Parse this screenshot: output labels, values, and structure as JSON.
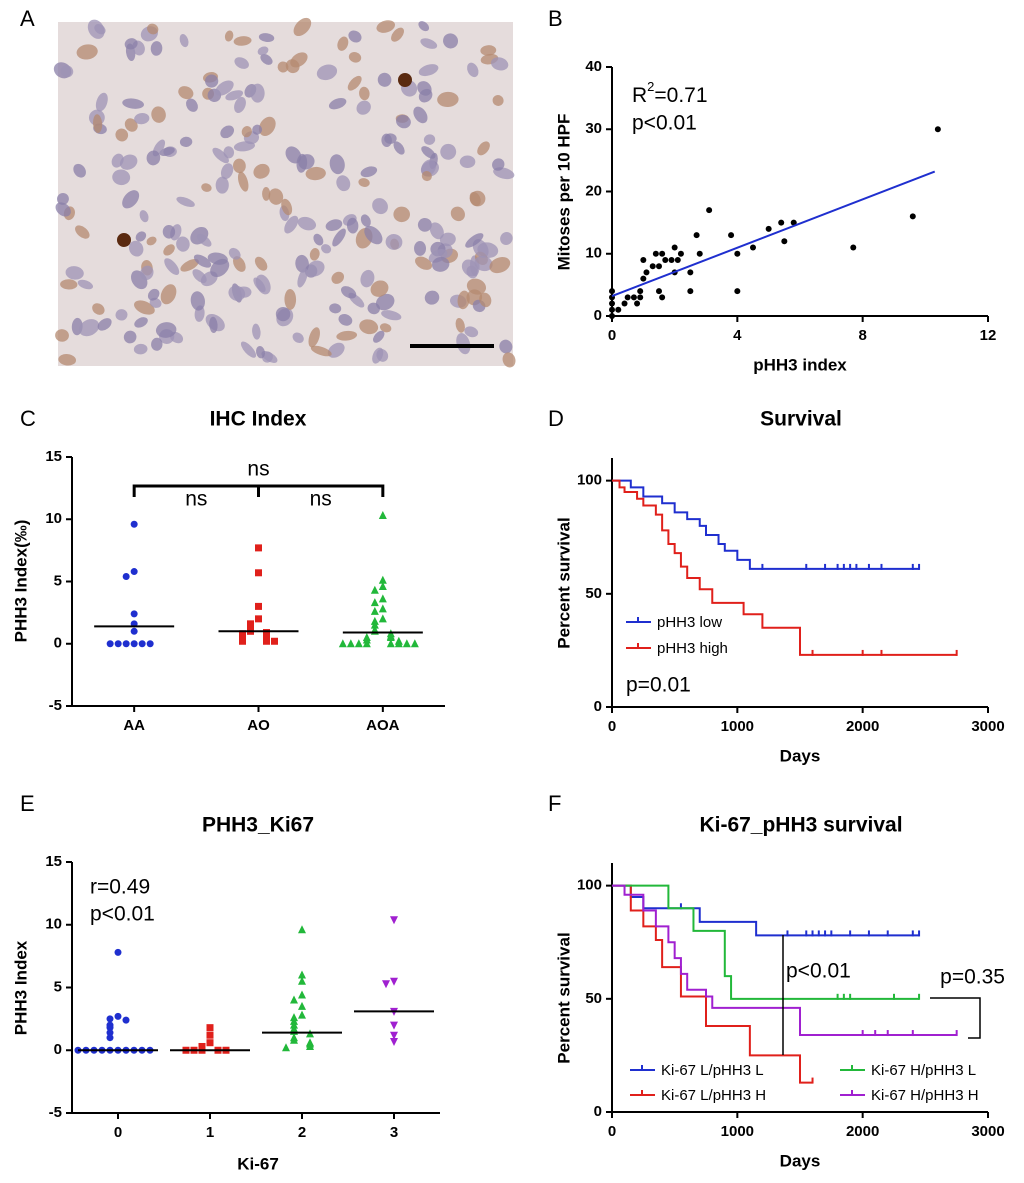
{
  "chart_data": [
    {
      "panel": "A",
      "type": "image"
    },
    {
      "panel": "B",
      "type": "scatter",
      "x": [
        0,
        0,
        0,
        0,
        0,
        0.2,
        0.4,
        0.5,
        0.7,
        0.8,
        0.9,
        0.9,
        1,
        1,
        1.1,
        1.3,
        1.4,
        1.5,
        1.5,
        1.6,
        1.6,
        1.7,
        1.9,
        2,
        2,
        2.2,
        2.1,
        2.5,
        2.5,
        2.7,
        3.1,
        2.8,
        3.8,
        4,
        4,
        4.5,
        5,
        5.4,
        5.5,
        5.8,
        7.7,
        9.6,
        10.4
      ],
      "y": [
        0,
        1,
        2,
        3,
        4,
        1,
        2,
        3,
        3,
        2,
        3,
        4,
        6,
        9,
        7,
        8,
        10,
        8,
        4,
        3,
        10,
        9,
        9,
        7,
        11,
        10,
        9,
        4,
        7,
        13,
        17,
        10,
        13,
        10,
        4,
        11,
        14,
        15,
        12,
        15,
        11,
        16,
        30
      ],
      "color": "#000000",
      "fit_line": {
        "x": [
          0,
          10.3
        ],
        "y": [
          3.2,
          23.2
        ],
        "color": "#1f2fcf"
      },
      "stat_label": {
        "text": "R",
        "superscript": "2",
        "value": "=0.71"
      },
      "p_label": "p<0.01",
      "xlabel": "pHH3 index",
      "ylabel": "Mitoses per 10 HPF",
      "xlim": [
        0,
        12
      ],
      "xticks": [
        0,
        4,
        8,
        12
      ],
      "ylim": [
        0,
        40
      ],
      "yticks": [
        0,
        10,
        20,
        30,
        40
      ]
    },
    {
      "panel": "C",
      "type": "dot",
      "title": "IHC Index",
      "ylabel": "PHH3 Index(‰)",
      "categories": [
        "AA",
        "AO",
        "AOA"
      ],
      "colors": [
        "#1f2fcf",
        "#e0201b",
        "#22b83a"
      ],
      "markers": [
        "circle",
        "square",
        "triangle-up"
      ],
      "values": [
        [
          9.6,
          5.8,
          5.4,
          2.4,
          1.6,
          1.0,
          0,
          0,
          0,
          0,
          0,
          0
        ],
        [
          7.7,
          5.7,
          3,
          2,
          1.6,
          1.2,
          1,
          0.9,
          0.8,
          0.5,
          0.5,
          0.2,
          0.2,
          0.2
        ],
        [
          10.3,
          5.1,
          4.6,
          4.3,
          3.6,
          3.3,
          2.8,
          2.6,
          2,
          1.8,
          1.5,
          1.1,
          1,
          0.8,
          0.6,
          0.5,
          0.5,
          0.3,
          0.2,
          0,
          0,
          0,
          0,
          0,
          0,
          0,
          0
        ]
      ],
      "medians": [
        1.4,
        1.0,
        0.9
      ],
      "annotations": [
        "ns",
        "ns",
        "ns"
      ],
      "ylim": [
        -5,
        15
      ],
      "yticks": [
        -5,
        0,
        5,
        10,
        15
      ]
    },
    {
      "panel": "D",
      "type": "survival",
      "title": "Survival",
      "xlabel": "Days",
      "ylabel": "Percent survival",
      "series": [
        {
          "name": "pHH3 low",
          "color": "#1f2fcf",
          "x": [
            0,
            150,
            250,
            400,
            500,
            600,
            700,
            750,
            850,
            900,
            1000,
            1100
          ],
          "values": [
            100,
            97,
            93,
            90,
            86,
            83,
            80,
            76,
            72,
            69,
            65,
            61
          ],
          "censored": [
            1200,
            1550,
            1700,
            1800,
            1850,
            1900,
            1950,
            2050,
            2150,
            2400,
            2450
          ]
        },
        {
          "name": "pHH3 high",
          "color": "#e0201b",
          "x": [
            0,
            60,
            100,
            200,
            250,
            350,
            400,
            450,
            500,
            550,
            600,
            700,
            800,
            1050,
            1200,
            1500
          ],
          "values": [
            100,
            97,
            95,
            92,
            89,
            85,
            78,
            72,
            68,
            62,
            57,
            52,
            46,
            41,
            35,
            23
          ],
          "censored": [
            1600,
            2000,
            2150,
            2750
          ]
        }
      ],
      "annotations": [
        "p=0.01"
      ],
      "xlim": [
        0,
        3000
      ],
      "xticks": [
        0,
        1000,
        2000,
        3000
      ],
      "ylim": [
        0,
        110
      ],
      "yticks": [
        0,
        50,
        100
      ]
    },
    {
      "panel": "E",
      "type": "dot",
      "title": "PHH3_Ki67",
      "xlabel": "Ki-67",
      "ylabel": "PHH3 Index",
      "categories": [
        "0",
        "1",
        "2",
        "3"
      ],
      "colors": [
        "#1f2fcf",
        "#e0201b",
        "#22b83a",
        "#a020d0"
      ],
      "markers": [
        "circle",
        "square",
        "triangle-up",
        "triangle-down"
      ],
      "values": [
        [
          7.8,
          2.7,
          2.5,
          2.4,
          2.0,
          1.8,
          1.4,
          1.0,
          0,
          0,
          0,
          0,
          0,
          0,
          0,
          0,
          0,
          0
        ],
        [
          1.8,
          1.2,
          0.6,
          0.3,
          0,
          0,
          0,
          0,
          0
        ],
        [
          9.6,
          6.0,
          5.5,
          4.4,
          4.0,
          3.5,
          2.8,
          2.6,
          2.3,
          2.0,
          1.7,
          1.5,
          1.3,
          1.0,
          0.8,
          0.6,
          0.5,
          0.3,
          0.2
        ],
        [
          10.4,
          5.5,
          5.3,
          3.1,
          2.0,
          1.2,
          0.7
        ]
      ],
      "medians": [
        0,
        0,
        1.4,
        3.1
      ],
      "annotations": [
        "r=0.49",
        "p<0.01"
      ],
      "ylim": [
        -5,
        15
      ],
      "yticks": [
        -5,
        0,
        5,
        10,
        15
      ]
    },
    {
      "panel": "F",
      "type": "survival",
      "title": "Ki-67_pHH3 survival",
      "xlabel": "Days",
      "ylabel": "Percent survival",
      "series": [
        {
          "name": "Ki-67 L/pHH3 L",
          "color": "#1f2fcf",
          "x": [
            0,
            150,
            250,
            700,
            1150
          ],
          "values": [
            100,
            95,
            90,
            84,
            78
          ],
          "censored": [
            550,
            1400,
            1550,
            1600,
            1650,
            1700,
            1750,
            1900,
            2050,
            2200,
            2400,
            2450
          ]
        },
        {
          "name": "Ki-67 L/pHH3 H",
          "color": "#e0201b",
          "x": [
            0,
            150,
            250,
            350,
            400,
            550,
            750,
            1100,
            1500
          ],
          "values": [
            100,
            89,
            82,
            76,
            64,
            51,
            38,
            25,
            13
          ],
          "censored": [
            1600
          ]
        },
        {
          "name": "Ki-67 H/pHH3 L",
          "color": "#22b83a",
          "x": [
            0,
            450,
            650,
            900,
            950
          ],
          "values": [
            100,
            90,
            80,
            60,
            50
          ],
          "censored": [
            1800,
            1850,
            1900,
            2250,
            2450
          ]
        },
        {
          "name": "Ki-67 H/pHH3 H",
          "color": "#a020d0",
          "x": [
            0,
            100,
            250,
            350,
            450,
            500,
            550,
            600,
            750,
            800,
            1500
          ],
          "values": [
            100,
            96,
            89,
            82,
            75,
            68,
            61,
            54,
            51,
            46,
            34
          ],
          "censored": [
            2000,
            2100,
            2200,
            2400,
            2750
          ]
        }
      ],
      "annotations": [
        "p<0.01",
        "p=0.35"
      ],
      "xlim": [
        0,
        3000
      ],
      "xticks": [
        0,
        1000,
        2000,
        3000
      ],
      "ylim": [
        0,
        110
      ],
      "yticks": [
        0,
        50,
        100
      ]
    }
  ]
}
